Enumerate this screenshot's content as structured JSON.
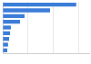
{
  "chart_data": {
    "type": "bar",
    "orientation": "horizontal",
    "categories": [
      null,
      null,
      null,
      null,
      null,
      null,
      null,
      null,
      null
    ],
    "values": [
      28.9,
      18.6,
      8.6,
      6.8,
      3.2,
      2.9,
      2.5,
      2.1,
      1.8
    ],
    "color": "#3b7dd8",
    "xlim": [
      0,
      34
    ],
    "xticks": [
      0,
      10,
      20,
      30
    ],
    "grid": true,
    "tick_labels": false
  }
}
